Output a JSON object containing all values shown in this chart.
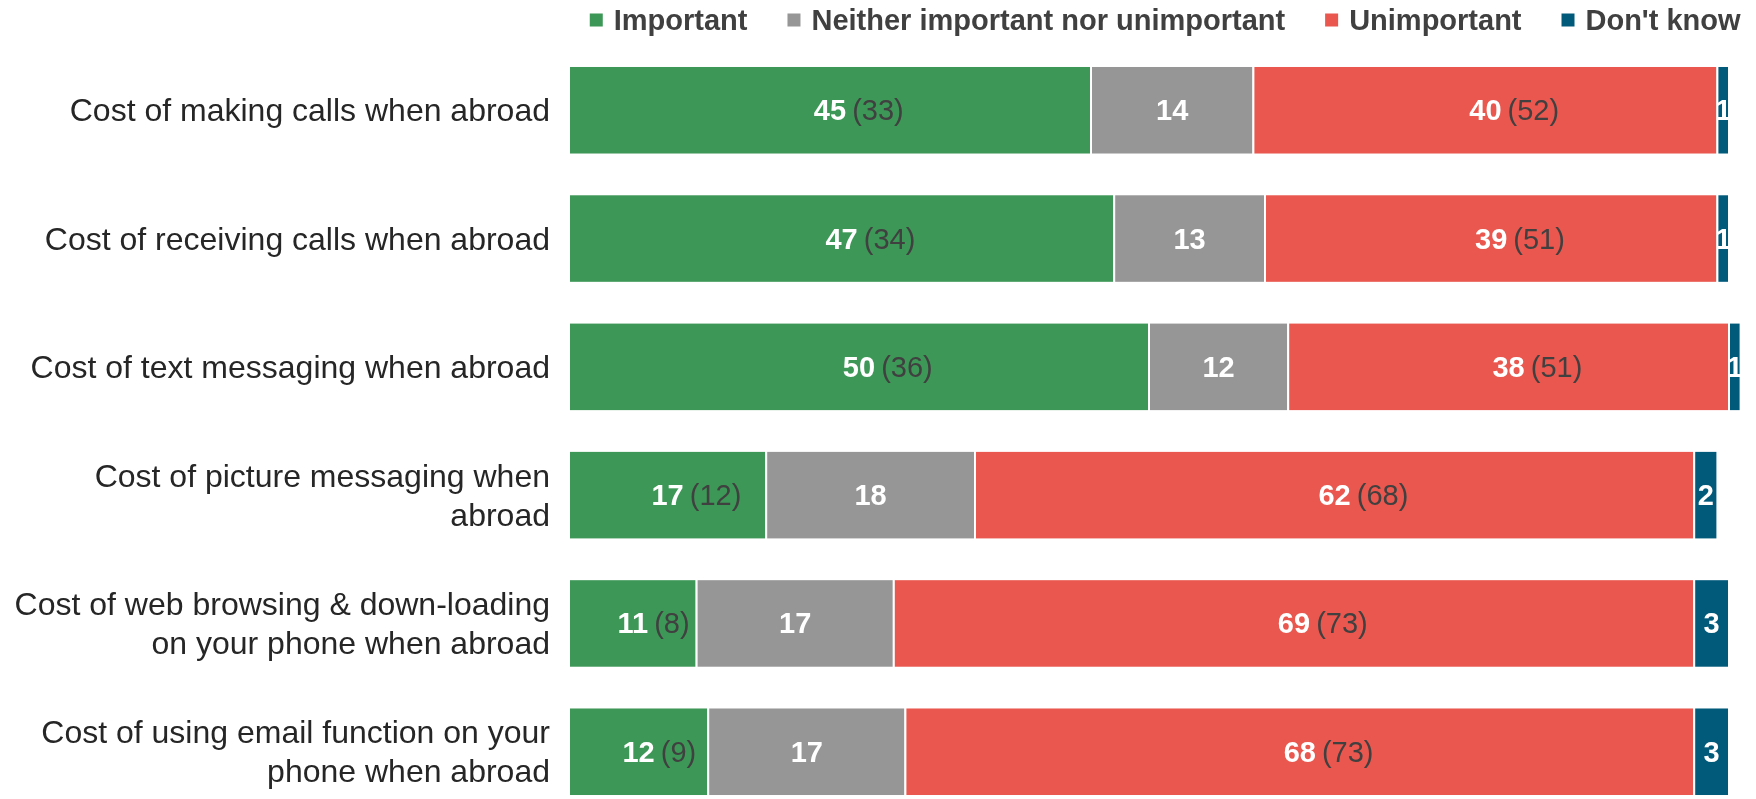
{
  "chart_data": {
    "type": "bar",
    "orientation": "horizontal",
    "stacked": true,
    "categories": [
      "Cost of making calls when abroad",
      "Cost of receiving calls when abroad",
      "Cost of text messaging when abroad",
      "Cost of picture messaging when abroad",
      "Cost of web browsing & down-loading on your phone when abroad",
      "Cost of using email function on your phone when abroad"
    ],
    "series": [
      {
        "name": "Important",
        "color": "#3d9757",
        "values": [
          45,
          47,
          50,
          17,
          11,
          12
        ],
        "value_labels": [
          "45 (33)",
          "47 (34)",
          "50 (36)",
          "17 (12)",
          "11 (8)",
          "12 (9)"
        ]
      },
      {
        "name": "Neither important nor unimportant",
        "color": "#969696",
        "values": [
          14,
          13,
          12,
          18,
          17,
          17
        ],
        "value_labels": [
          "14",
          "13",
          "12",
          "18",
          "17",
          "17"
        ]
      },
      {
        "name": "Unimportant",
        "color": "#e9574e",
        "values": [
          40,
          39,
          38,
          62,
          69,
          68
        ],
        "value_labels": [
          "40 (52)",
          "39 (51)",
          "38 (51)",
          "62 (68)",
          "69 (73)",
          "68 (73)"
        ]
      },
      {
        "name": "Don't know",
        "color": "#025a7b",
        "values": [
          1,
          1,
          1,
          2,
          3,
          3
        ],
        "value_labels": [
          "1",
          "1",
          "1",
          "2",
          "3",
          "3"
        ]
      }
    ],
    "xlim": [
      0,
      101
    ],
    "tick_labels": "y",
    "legend": "top"
  }
}
